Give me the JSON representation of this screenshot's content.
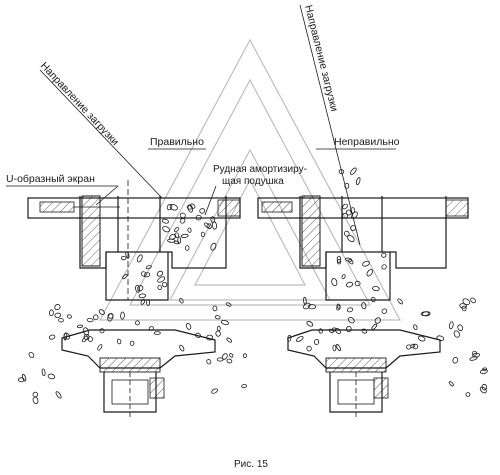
{
  "labels": {
    "load_direction": "Направление загрузки",
    "correct": "Правильно",
    "incorrect": "Неправильно",
    "u_screen": "U-образный экран",
    "ore_cushion_line1": "Рудная амортизиру-",
    "ore_cushion_line2": "щая подушка",
    "caption": "Рис. 15"
  },
  "colors": {
    "ink": "#1a1a1a",
    "watermark": "#bdbdbd"
  }
}
